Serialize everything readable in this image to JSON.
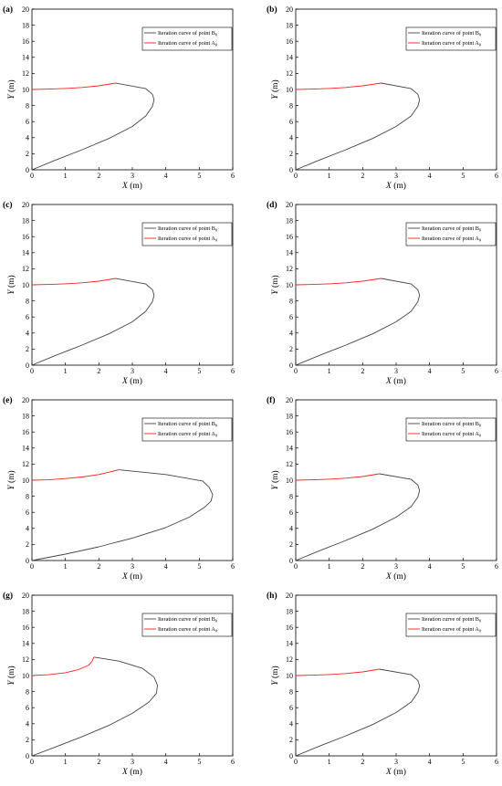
{
  "chart_data": [
    {
      "panel": "(a)",
      "type": "line",
      "xlabel_var": "X",
      "xlabel_unit": " (m)",
      "ylabel_var": "Y",
      "ylabel_unit": " (m)",
      "xlim": [
        0,
        6
      ],
      "ylim": [
        0,
        20
      ],
      "xticks": [
        0,
        1,
        2,
        3,
        4,
        5,
        6
      ],
      "yticks": [
        0,
        2,
        4,
        6,
        8,
        10,
        12,
        14,
        16,
        18,
        20
      ],
      "legend_position": "top-right",
      "series": [
        {
          "name_prefix": "Iteration curve of point B",
          "name_sub": "0",
          "color": "#444444",
          "x": [
            0,
            0.7,
            1.5,
            2.3,
            3.0,
            3.4,
            3.6,
            3.65,
            3.6,
            3.4,
            2.5
          ],
          "y": [
            0,
            1.2,
            2.5,
            3.9,
            5.4,
            6.7,
            7.9,
            8.7,
            9.4,
            10.1,
            10.8
          ]
        },
        {
          "name_prefix": "Iteration curve of point A",
          "name_sub": "0",
          "color": "#ff2020",
          "x": [
            0,
            0.5,
            1.0,
            1.5,
            2.0,
            2.5
          ],
          "y": [
            10.0,
            10.05,
            10.12,
            10.25,
            10.45,
            10.8
          ]
        }
      ]
    },
    {
      "panel": "(b)",
      "type": "line",
      "xlabel_var": "X",
      "xlabel_unit": " (m)",
      "ylabel_var": "Y",
      "ylabel_unit": " (m)",
      "xlim": [
        0,
        6
      ],
      "ylim": [
        0,
        20
      ],
      "xticks": [
        0,
        1,
        2,
        3,
        4,
        5,
        6
      ],
      "yticks": [
        0,
        2,
        4,
        6,
        8,
        10,
        12,
        14,
        16,
        18,
        20
      ],
      "legend_position": "top-right",
      "series": [
        {
          "name_prefix": "Iteration curve of point B",
          "name_sub": "0",
          "color": "#444444",
          "x": [
            0,
            0.7,
            1.5,
            2.3,
            3.0,
            3.45,
            3.65,
            3.7,
            3.65,
            3.45,
            2.55
          ],
          "y": [
            0,
            1.2,
            2.5,
            3.9,
            5.4,
            6.7,
            7.9,
            8.7,
            9.4,
            10.1,
            10.8
          ]
        },
        {
          "name_prefix": "Iteration curve of point A",
          "name_sub": "0",
          "color": "#ff2020",
          "x": [
            0,
            0.5,
            1.0,
            1.5,
            2.0,
            2.55
          ],
          "y": [
            10.0,
            10.05,
            10.12,
            10.25,
            10.45,
            10.8
          ]
        }
      ]
    },
    {
      "panel": "(c)",
      "type": "line",
      "xlabel_var": "X",
      "xlabel_unit": " (m)",
      "ylabel_var": "Y",
      "ylabel_unit": " (m)",
      "xlim": [
        0,
        6
      ],
      "ylim": [
        0,
        20
      ],
      "xticks": [
        0,
        1,
        2,
        3,
        4,
        5,
        6
      ],
      "yticks": [
        0,
        2,
        4,
        6,
        8,
        10,
        12,
        14,
        16,
        18,
        20
      ],
      "legend_position": "top-right",
      "series": [
        {
          "name_prefix": "Iteration curve of point B",
          "name_sub": "0",
          "color": "#444444",
          "x": [
            0,
            0.7,
            1.5,
            2.3,
            3.0,
            3.4,
            3.6,
            3.65,
            3.6,
            3.4,
            2.5
          ],
          "y": [
            0,
            1.2,
            2.5,
            3.9,
            5.4,
            6.7,
            7.9,
            8.7,
            9.4,
            10.1,
            10.8
          ]
        },
        {
          "name_prefix": "Iteration curve of point A",
          "name_sub": "0",
          "color": "#ff2020",
          "x": [
            0,
            0.5,
            1.0,
            1.5,
            2.0,
            2.5
          ],
          "y": [
            10.0,
            10.05,
            10.12,
            10.25,
            10.45,
            10.8
          ]
        }
      ]
    },
    {
      "panel": "(d)",
      "type": "line",
      "xlabel_var": "X",
      "xlabel_unit": " (m)",
      "ylabel_var": "Y",
      "ylabel_unit": " (m)",
      "xlim": [
        0,
        6
      ],
      "ylim": [
        0,
        20
      ],
      "xticks": [
        0,
        1,
        2,
        3,
        4,
        5,
        6
      ],
      "yticks": [
        0,
        2,
        4,
        6,
        8,
        10,
        12,
        14,
        16,
        18,
        20
      ],
      "legend_position": "top-right",
      "series": [
        {
          "name_prefix": "Iteration curve of point B",
          "name_sub": "0",
          "color": "#444444",
          "x": [
            0,
            0.7,
            1.5,
            2.3,
            3.0,
            3.45,
            3.65,
            3.7,
            3.65,
            3.45,
            2.55
          ],
          "y": [
            0,
            1.2,
            2.5,
            3.9,
            5.4,
            6.7,
            7.9,
            8.7,
            9.4,
            10.1,
            10.8
          ]
        },
        {
          "name_prefix": "Iteration curve of point A",
          "name_sub": "0",
          "color": "#ff2020",
          "x": [
            0,
            0.5,
            1.0,
            1.5,
            2.0,
            2.55
          ],
          "y": [
            10.0,
            10.05,
            10.12,
            10.25,
            10.45,
            10.8
          ]
        }
      ]
    },
    {
      "panel": "(e)",
      "type": "line",
      "xlabel_var": "X",
      "xlabel_unit": " (m)",
      "ylabel_var": "Y",
      "ylabel_unit": " (m)",
      "xlim": [
        0,
        6
      ],
      "ylim": [
        0,
        20
      ],
      "xticks": [
        0,
        1,
        2,
        3,
        4,
        5,
        6
      ],
      "yticks": [
        0,
        2,
        4,
        6,
        8,
        10,
        12,
        14,
        16,
        18,
        20
      ],
      "legend_position": "top-right",
      "series": [
        {
          "name_prefix": "Iteration curve of point B",
          "name_sub": "0",
          "color": "#444444",
          "x": [
            0,
            1.0,
            2.0,
            3.0,
            4.0,
            4.7,
            5.15,
            5.35,
            5.4,
            5.3,
            5.1,
            4.0,
            2.6
          ],
          "y": [
            0,
            0.8,
            1.7,
            2.8,
            4.1,
            5.4,
            6.6,
            7.4,
            8.2,
            9.1,
            9.9,
            10.7,
            11.3
          ]
        },
        {
          "name_prefix": "Iteration curve of point A",
          "name_sub": "0",
          "color": "#ff2020",
          "x": [
            0,
            0.5,
            1.0,
            1.5,
            2.0,
            2.3,
            2.6
          ],
          "y": [
            10.0,
            10.05,
            10.2,
            10.4,
            10.7,
            11.0,
            11.3
          ]
        }
      ]
    },
    {
      "panel": "(f)",
      "type": "line",
      "xlabel_var": "X",
      "xlabel_unit": " (m)",
      "ylabel_var": "Y",
      "ylabel_unit": " (m)",
      "xlim": [
        0,
        6
      ],
      "ylim": [
        0,
        20
      ],
      "xticks": [
        0,
        1,
        2,
        3,
        4,
        5,
        6
      ],
      "yticks": [
        0,
        2,
        4,
        6,
        8,
        10,
        12,
        14,
        16,
        18,
        20
      ],
      "legend_position": "top-right",
      "series": [
        {
          "name_prefix": "Iteration curve of point B",
          "name_sub": "0",
          "color": "#444444",
          "x": [
            0,
            0.7,
            1.5,
            2.3,
            3.0,
            3.45,
            3.65,
            3.7,
            3.65,
            3.45,
            2.5
          ],
          "y": [
            0,
            1.2,
            2.5,
            3.9,
            5.4,
            6.7,
            7.9,
            8.7,
            9.4,
            10.1,
            10.8
          ]
        },
        {
          "name_prefix": "Iteration curve of point A",
          "name_sub": "0",
          "color": "#ff2020",
          "x": [
            0,
            0.5,
            1.0,
            1.5,
            2.0,
            2.5
          ],
          "y": [
            10.0,
            10.05,
            10.12,
            10.25,
            10.45,
            10.8
          ]
        }
      ]
    },
    {
      "panel": "(g)",
      "type": "line",
      "xlabel_var": "X",
      "xlabel_unit": " (m)",
      "ylabel_var": "Y",
      "ylabel_unit": " (m)",
      "xlim": [
        0,
        6
      ],
      "ylim": [
        0,
        20
      ],
      "xticks": [
        0,
        1,
        2,
        3,
        4,
        5,
        6
      ],
      "yticks": [
        0,
        2,
        4,
        6,
        8,
        10,
        12,
        14,
        16,
        18,
        20
      ],
      "legend_position": "top-right",
      "series": [
        {
          "name_prefix": "Iteration curve of point B",
          "name_sub": "0",
          "color": "#444444",
          "x": [
            0,
            0.7,
            1.5,
            2.3,
            3.0,
            3.5,
            3.72,
            3.75,
            3.65,
            3.3,
            2.6,
            1.85
          ],
          "y": [
            0,
            1.1,
            2.4,
            3.8,
            5.3,
            6.7,
            7.8,
            8.8,
            9.8,
            10.9,
            11.8,
            12.3
          ]
        },
        {
          "name_prefix": "Iteration curve of point A",
          "name_sub": "0",
          "color": "#ff2020",
          "x": [
            0,
            0.5,
            1.0,
            1.4,
            1.7,
            1.8,
            1.85
          ],
          "y": [
            10.0,
            10.1,
            10.35,
            10.75,
            11.3,
            11.8,
            12.3
          ]
        }
      ]
    },
    {
      "panel": "(h)",
      "type": "line",
      "xlabel_var": "X",
      "xlabel_unit": " (m)",
      "ylabel_var": "Y",
      "ylabel_unit": " (m)",
      "xlim": [
        0,
        6
      ],
      "ylim": [
        0,
        20
      ],
      "xticks": [
        0,
        1,
        2,
        3,
        4,
        5,
        6
      ],
      "yticks": [
        0,
        2,
        4,
        6,
        8,
        10,
        12,
        14,
        16,
        18,
        20
      ],
      "legend_position": "top-right",
      "series": [
        {
          "name_prefix": "Iteration curve of point B",
          "name_sub": "0",
          "color": "#444444",
          "x": [
            0,
            0.7,
            1.5,
            2.3,
            3.0,
            3.45,
            3.65,
            3.7,
            3.65,
            3.45,
            2.5
          ],
          "y": [
            0,
            1.2,
            2.5,
            3.9,
            5.4,
            6.7,
            7.9,
            8.7,
            9.4,
            10.1,
            10.8
          ]
        },
        {
          "name_prefix": "Iteration curve of point A",
          "name_sub": "0",
          "color": "#ff2020",
          "x": [
            0,
            0.5,
            1.0,
            1.5,
            2.0,
            2.5
          ],
          "y": [
            10.0,
            10.05,
            10.12,
            10.25,
            10.45,
            10.8
          ]
        }
      ]
    }
  ]
}
